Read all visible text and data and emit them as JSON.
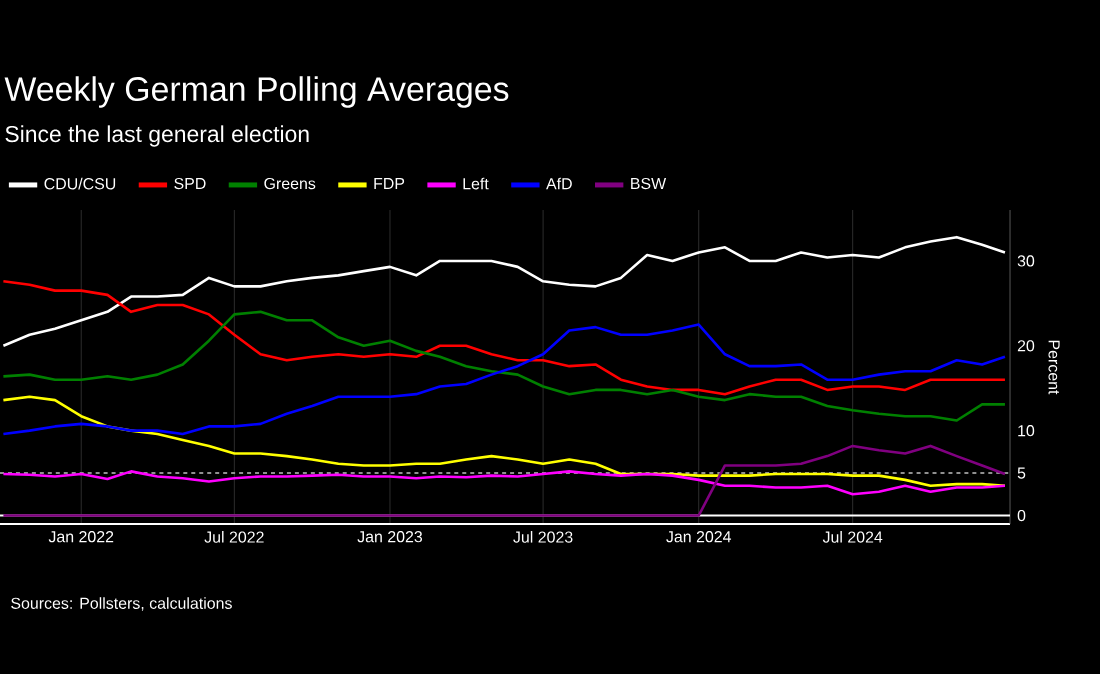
{
  "chart_data": {
    "type": "line",
    "title": "Weekly German Polling Averages",
    "subtitle": "Since the last general election",
    "ylabel": "Percent",
    "x": [
      "2021-10-01",
      "2021-11-01",
      "2021-12-01",
      "2022-01-01",
      "2022-02-01",
      "2022-03-01",
      "2022-04-01",
      "2022-05-01",
      "2022-06-01",
      "2022-07-01",
      "2022-08-01",
      "2022-09-01",
      "2022-10-01",
      "2022-11-01",
      "2022-12-01",
      "2023-01-01",
      "2023-02-01",
      "2023-03-01",
      "2023-04-01",
      "2023-05-01",
      "2023-06-01",
      "2023-07-01",
      "2023-08-01",
      "2023-09-01",
      "2023-10-01",
      "2023-11-01",
      "2023-12-01",
      "2024-01-01",
      "2024-02-01",
      "2024-03-01",
      "2024-04-01",
      "2024-05-01",
      "2024-06-01",
      "2024-07-01",
      "2024-08-01",
      "2024-09-01",
      "2024-10-01",
      "2024-11-01",
      "2024-12-01",
      "2024-12-28"
    ],
    "series": [
      {
        "name": "CDU/CSU",
        "color": "#ffffff",
        "values": [
          20,
          21.3,
          22,
          23,
          24,
          25.8,
          25.8,
          26,
          28,
          27,
          27,
          27.6,
          28,
          28.3,
          28.8,
          29.3,
          28.3,
          30,
          30,
          30,
          29.3,
          27.6,
          27.2,
          27,
          28,
          30.7,
          30,
          31,
          31.6,
          30,
          30,
          31,
          30.4,
          30.7,
          30.4,
          31.6,
          32.3,
          32.8,
          31.9,
          31
        ]
      },
      {
        "name": "SPD",
        "color": "#ff0000",
        "values": [
          27.6,
          27.2,
          26.5,
          26.5,
          26,
          24,
          24.8,
          24.8,
          23.7,
          21.3,
          19,
          18.3,
          18.7,
          19,
          18.7,
          19,
          18.7,
          20,
          20,
          19,
          18.3,
          18.3,
          17.6,
          17.8,
          16,
          15.2,
          14.8,
          14.8,
          14.3,
          15.2,
          16,
          16,
          14.8,
          15.2,
          15.2,
          14.8,
          16,
          16,
          16,
          16
        ]
      },
      {
        "name": "Greens",
        "color": "#008000",
        "values": [
          16.4,
          16.6,
          16,
          16,
          16.4,
          16,
          16.6,
          17.8,
          20.6,
          23.7,
          24,
          23,
          23,
          21,
          20,
          20.6,
          19.4,
          18.7,
          17.6,
          17,
          16.6,
          15.2,
          14.3,
          14.8,
          14.8,
          14.3,
          14.8,
          14,
          13.6,
          14.3,
          14,
          14,
          12.9,
          12.4,
          12,
          11.7,
          11.7,
          11.2,
          13.1,
          13.1
        ]
      },
      {
        "name": "FDP",
        "color": "#ffff00",
        "values": [
          13.6,
          14,
          13.6,
          11.7,
          10.5,
          10,
          9.6,
          8.9,
          8.2,
          7.3,
          7.3,
          7,
          6.6,
          6.1,
          5.9,
          5.9,
          6.1,
          6.1,
          6.6,
          7,
          6.6,
          6.1,
          6.6,
          6.1,
          4.9,
          4.9,
          4.9,
          4.7,
          4.7,
          4.7,
          4.9,
          4.9,
          4.9,
          4.7,
          4.7,
          4.2,
          3.5,
          3.7,
          3.7,
          3.5
        ]
      },
      {
        "name": "Left",
        "color": "#ff00ff",
        "values": [
          4.9,
          4.8,
          4.6,
          4.9,
          4.3,
          5.2,
          4.6,
          4.4,
          4,
          4.4,
          4.6,
          4.6,
          4.7,
          4.8,
          4.6,
          4.6,
          4.4,
          4.6,
          4.5,
          4.7,
          4.6,
          4.9,
          5.2,
          4.9,
          4.7,
          4.9,
          4.7,
          4.2,
          3.5,
          3.5,
          3.3,
          3.3,
          3.5,
          2.5,
          2.8,
          3.5,
          2.8,
          3.3,
          3.3,
          3.5
        ]
      },
      {
        "name": "AfD",
        "color": "#0000ff",
        "values": [
          9.6,
          10,
          10.5,
          10.8,
          10.5,
          10,
          10,
          9.6,
          10.5,
          10.5,
          10.8,
          12,
          12.9,
          14,
          14,
          14,
          14.3,
          15.2,
          15.5,
          16.6,
          17.6,
          19,
          21.8,
          22.2,
          21.3,
          21.3,
          21.8,
          22.5,
          19,
          17.6,
          17.6,
          17.8,
          16,
          16,
          16.6,
          17,
          17,
          18.3,
          17.8,
          18.7
        ]
      },
      {
        "name": "BSW",
        "color": "#800080",
        "values": [
          0,
          0,
          0,
          0,
          0,
          0,
          0,
          0,
          0,
          0,
          0,
          0,
          0,
          0,
          0,
          0,
          0,
          0,
          0,
          0,
          0,
          0,
          0,
          0,
          0,
          0,
          0,
          0,
          5.9,
          5.9,
          5.9,
          6.1,
          7,
          8.2,
          7.7,
          7.3,
          8.2,
          7,
          5.9,
          4.9
        ]
      }
    ],
    "xlim": [
      "2021-09-27",
      "2025-01-03"
    ],
    "ylim": [
      -1,
      36
    ],
    "xticks": [
      {
        "value": "2022-01-01",
        "label": "Jan 2022"
      },
      {
        "value": "2022-07-01",
        "label": "Jul 2022"
      },
      {
        "value": "2023-01-01",
        "label": "Jan 2023"
      },
      {
        "value": "2023-07-01",
        "label": "Jul 2023"
      },
      {
        "value": "2024-01-01",
        "label": "Jan 2024"
      },
      {
        "value": "2024-07-01",
        "label": "Jul 2024"
      }
    ],
    "yticks": [
      0,
      5,
      10,
      20,
      30
    ],
    "grid": "x",
    "legend": "top left",
    "ref_lines": [
      {
        "axis": "y",
        "value": 0,
        "color": "#ffffff",
        "line_style": "solid"
      },
      {
        "axis": "y",
        "value": 5,
        "color": "#909090",
        "line_style": "dashed"
      }
    ],
    "annotations": [
      "Sources: Pollsters, calculations"
    ]
  }
}
